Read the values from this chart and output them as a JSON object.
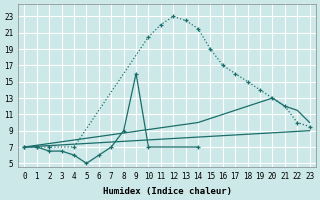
{
  "xlabel": "Humidex (Indice chaleur)",
  "bg_color": "#cde8e8",
  "grid_color": "#b0d8d8",
  "line_color": "#1a6e6a",
  "xlim": [
    -0.5,
    23.5
  ],
  "ylim": [
    4.5,
    24.5
  ],
  "xticks": [
    0,
    1,
    2,
    3,
    4,
    5,
    6,
    7,
    8,
    9,
    10,
    11,
    12,
    13,
    14,
    15,
    16,
    17,
    18,
    19,
    20,
    21,
    22,
    23
  ],
  "yticks": [
    5,
    7,
    9,
    11,
    13,
    15,
    17,
    19,
    21,
    23
  ],
  "figsize": [
    3.2,
    2.0
  ],
  "dpi": 100,
  "line1_x": [
    0,
    1,
    2,
    4,
    10,
    11,
    12,
    13,
    14,
    15,
    16,
    17,
    18,
    19,
    20,
    21,
    22,
    23
  ],
  "line1_y": [
    7,
    7,
    7,
    7,
    20.5,
    22,
    23,
    22.5,
    21.5,
    19,
    17,
    16,
    15,
    14,
    13,
    12,
    10,
    9.5
  ],
  "line2_x": [
    0,
    1,
    2,
    3,
    4,
    5,
    6,
    7,
    8,
    9,
    10,
    14
  ],
  "line2_y": [
    7,
    7,
    6.5,
    6.5,
    6,
    5,
    6,
    7,
    9,
    16,
    7,
    7
  ],
  "line3_x": [
    0,
    14,
    20,
    21,
    22,
    23
  ],
  "line3_y": [
    7,
    10,
    13,
    12,
    11.5,
    10
  ],
  "line4_x": [
    0,
    23
  ],
  "line4_y": [
    7,
    9
  ]
}
